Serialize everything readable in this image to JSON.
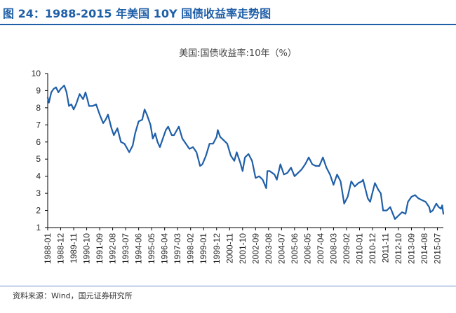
{
  "figure": {
    "title": "图 24：1988-2015 年美国 10Y 国债收益率走势图",
    "source": "资料来源：Wind，国元证券研究所"
  },
  "colors": {
    "accent": "#1f5fa8",
    "line": "#1f5fa8",
    "axis": "#000000"
  },
  "chart_data": {
    "type": "line",
    "title": "美国:国债收益率:10年（%）",
    "xlabel": "",
    "ylabel": "",
    "ylim": [
      1,
      10
    ],
    "yticks": [
      1,
      2,
      3,
      4,
      5,
      6,
      7,
      8,
      9,
      10
    ],
    "grid": false,
    "legend": "none",
    "x_range": [
      "1988-01",
      "2015-12"
    ],
    "xticks": [
      "1988-01",
      "1988-12",
      "1989-11",
      "1990-10",
      "1991-09",
      "1992-08",
      "1993-07",
      "1994-06",
      "1995-05",
      "1996-04",
      "1997-03",
      "1998-02",
      "1999-01",
      "1999-12",
      "2000-11",
      "2001-10",
      "2002-09",
      "2003-08",
      "2004-07",
      "2005-06",
      "2006-05",
      "2007-04",
      "2008-03",
      "2009-02",
      "2010-01",
      "2010-12",
      "2011-11",
      "2012-10",
      "2013-09",
      "2014-08",
      "2015-07"
    ],
    "series": [
      {
        "name": "美国:国债收益率:10年",
        "points": [
          [
            "1988-01",
            8.6
          ],
          [
            "1988-02",
            8.3
          ],
          [
            "1988-04",
            8.9
          ],
          [
            "1988-06",
            9.1
          ],
          [
            "1988-08",
            9.2
          ],
          [
            "1988-10",
            8.9
          ],
          [
            "1988-12",
            9.1
          ],
          [
            "1989-03",
            9.3
          ],
          [
            "1989-05",
            8.9
          ],
          [
            "1989-07",
            8.1
          ],
          [
            "1989-09",
            8.2
          ],
          [
            "1989-11",
            7.9
          ],
          [
            "1990-01",
            8.2
          ],
          [
            "1990-04",
            8.8
          ],
          [
            "1990-07",
            8.5
          ],
          [
            "1990-09",
            8.9
          ],
          [
            "1990-11",
            8.4
          ],
          [
            "1990-12",
            8.1
          ],
          [
            "1991-03",
            8.1
          ],
          [
            "1991-06",
            8.2
          ],
          [
            "1991-09",
            7.6
          ],
          [
            "1991-12",
            7.1
          ],
          [
            "1992-02",
            7.3
          ],
          [
            "1992-04",
            7.6
          ],
          [
            "1992-07",
            6.8
          ],
          [
            "1992-09",
            6.4
          ],
          [
            "1992-12",
            6.8
          ],
          [
            "1993-03",
            6.0
          ],
          [
            "1993-06",
            5.9
          ],
          [
            "1993-10",
            5.4
          ],
          [
            "1994-01",
            5.8
          ],
          [
            "1994-03",
            6.5
          ],
          [
            "1994-06",
            7.2
          ],
          [
            "1994-09",
            7.3
          ],
          [
            "1994-11",
            7.9
          ],
          [
            "1995-01",
            7.6
          ],
          [
            "1995-04",
            7.0
          ],
          [
            "1995-06",
            6.2
          ],
          [
            "1995-08",
            6.5
          ],
          [
            "1995-10",
            6.0
          ],
          [
            "1995-12",
            5.7
          ],
          [
            "1996-03",
            6.3
          ],
          [
            "1996-05",
            6.7
          ],
          [
            "1996-07",
            6.9
          ],
          [
            "1996-10",
            6.4
          ],
          [
            "1996-12",
            6.4
          ],
          [
            "1997-04",
            6.9
          ],
          [
            "1997-07",
            6.2
          ],
          [
            "1997-10",
            5.9
          ],
          [
            "1998-01",
            5.6
          ],
          [
            "1998-04",
            5.7
          ],
          [
            "1998-07",
            5.4
          ],
          [
            "1998-10",
            4.6
          ],
          [
            "1998-12",
            4.7
          ],
          [
            "1999-03",
            5.2
          ],
          [
            "1999-06",
            5.9
          ],
          [
            "1999-09",
            5.9
          ],
          [
            "1999-12",
            6.3
          ],
          [
            "2000-01",
            6.7
          ],
          [
            "2000-03",
            6.3
          ],
          [
            "2000-06",
            6.1
          ],
          [
            "2000-09",
            5.9
          ],
          [
            "2000-12",
            5.2
          ],
          [
            "2001-03",
            4.9
          ],
          [
            "2001-05",
            5.4
          ],
          [
            "2001-08",
            4.8
          ],
          [
            "2001-10",
            4.3
          ],
          [
            "2001-12",
            5.1
          ],
          [
            "2002-03",
            5.3
          ],
          [
            "2002-06",
            4.9
          ],
          [
            "2002-09",
            3.9
          ],
          [
            "2002-12",
            4.0
          ],
          [
            "2003-03",
            3.8
          ],
          [
            "2003-06",
            3.3
          ],
          [
            "2003-07",
            4.3
          ],
          [
            "2003-09",
            4.3
          ],
          [
            "2004-01",
            4.1
          ],
          [
            "2004-03",
            3.8
          ],
          [
            "2004-06",
            4.7
          ],
          [
            "2004-09",
            4.1
          ],
          [
            "2004-12",
            4.2
          ],
          [
            "2005-03",
            4.5
          ],
          [
            "2005-06",
            4.0
          ],
          [
            "2005-09",
            4.2
          ],
          [
            "2005-12",
            4.4
          ],
          [
            "2006-03",
            4.7
          ],
          [
            "2006-06",
            5.1
          ],
          [
            "2006-09",
            4.7
          ],
          [
            "2006-12",
            4.6
          ],
          [
            "2007-03",
            4.6
          ],
          [
            "2007-06",
            5.1
          ],
          [
            "2007-09",
            4.5
          ],
          [
            "2007-12",
            4.1
          ],
          [
            "2008-03",
            3.5
          ],
          [
            "2008-06",
            4.1
          ],
          [
            "2008-09",
            3.7
          ],
          [
            "2008-12",
            2.4
          ],
          [
            "2009-03",
            2.8
          ],
          [
            "2009-06",
            3.7
          ],
          [
            "2009-09",
            3.4
          ],
          [
            "2009-12",
            3.6
          ],
          [
            "2010-03",
            3.7
          ],
          [
            "2010-04",
            3.8
          ],
          [
            "2010-08",
            2.7
          ],
          [
            "2010-10",
            2.5
          ],
          [
            "2011-02",
            3.6
          ],
          [
            "2011-05",
            3.2
          ],
          [
            "2011-07",
            3.0
          ],
          [
            "2011-09",
            2.0
          ],
          [
            "2011-12",
            2.0
          ],
          [
            "2012-03",
            2.2
          ],
          [
            "2012-07",
            1.5
          ],
          [
            "2012-10",
            1.7
          ],
          [
            "2013-01",
            1.9
          ],
          [
            "2013-04",
            1.8
          ],
          [
            "2013-06",
            2.5
          ],
          [
            "2013-09",
            2.8
          ],
          [
            "2013-12",
            2.9
          ],
          [
            "2014-03",
            2.7
          ],
          [
            "2014-06",
            2.6
          ],
          [
            "2014-09",
            2.5
          ],
          [
            "2014-12",
            2.2
          ],
          [
            "2015-01",
            1.9
          ],
          [
            "2015-03",
            2.0
          ],
          [
            "2015-06",
            2.4
          ],
          [
            "2015-08",
            2.2
          ],
          [
            "2015-10",
            2.1
          ],
          [
            "2015-11",
            2.3
          ],
          [
            "2015-12",
            1.8
          ]
        ]
      }
    ]
  }
}
